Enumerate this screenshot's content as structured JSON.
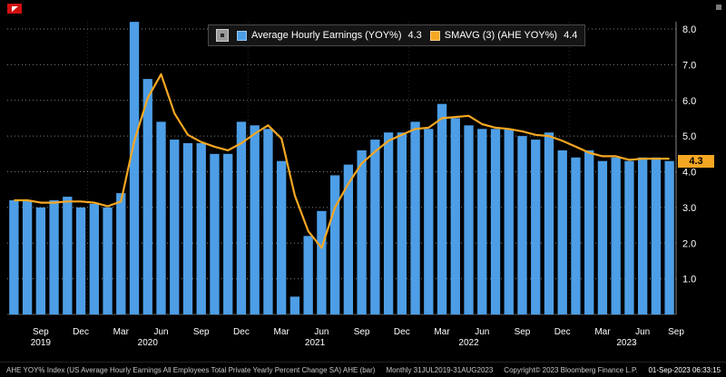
{
  "legend": {
    "series1_label": "Average Hourly Earnings (YOY%)",
    "series1_value": "4.3",
    "series2_label": "SMAVG (3) (AHE YOY%)",
    "series2_value": "4.4"
  },
  "axis": {
    "last_value": 4.3,
    "last_value_label": "4.3",
    "y_ticks": [
      {
        "v": 8,
        "label": "8.0"
      },
      {
        "v": 7,
        "label": "7.0"
      },
      {
        "v": 6,
        "label": "6.0"
      },
      {
        "v": 5,
        "label": "5.0"
      },
      {
        "v": 4,
        "label": "4.0"
      },
      {
        "v": 3,
        "label": "3.0"
      },
      {
        "v": 2,
        "label": "2.0"
      },
      {
        "v": 1,
        "label": "1.0"
      }
    ]
  },
  "footer": {
    "left": "AHE YOY% Index (US Average Hourly Earnings All Employees Total Private Yearly Percent Change SA) AHE (bar)",
    "mid": "Monthly 31JUL2019-31AUG2023",
    "copyright": "Copyright© 2023 Bloomberg Finance L.P.",
    "timestamp": "01-Sep-2023 06:33:15"
  },
  "colors": {
    "background": "#000000",
    "bar": "#4d9ee6",
    "line": "#f5a623",
    "grid": "rgba(255,255,255,0.5)",
    "axis_label_bg": "#f5a623"
  },
  "chart_data": {
    "type": "bar",
    "title": "Average Hourly Earnings YOY% with 3-month moving average",
    "xlabel": "",
    "ylabel": "YOY %",
    "ylim": [
      0,
      8.4
    ],
    "grid": "dotted horizontal",
    "legend_position": "top-center",
    "categories": [
      "Jul 2019",
      "Aug 2019",
      "Sep 2019",
      "Oct 2019",
      "Nov 2019",
      "Dec 2019",
      "Jan 2020",
      "Feb 2020",
      "Mar 2020",
      "Apr 2020",
      "May 2020",
      "Jun 2020",
      "Jul 2020",
      "Aug 2020",
      "Sep 2020",
      "Oct 2020",
      "Nov 2020",
      "Dec 2020",
      "Jan 2021",
      "Feb 2021",
      "Mar 2021",
      "Apr 2021",
      "May 2021",
      "Jun 2021",
      "Jul 2021",
      "Aug 2021",
      "Sep 2021",
      "Oct 2021",
      "Nov 2021",
      "Dec 2021",
      "Jan 2022",
      "Feb 2022",
      "Mar 2022",
      "Apr 2022",
      "May 2022",
      "Jun 2022",
      "Jul 2022",
      "Aug 2022",
      "Sep 2022",
      "Oct 2022",
      "Nov 2022",
      "Dec 2022",
      "Jan 2023",
      "Feb 2023",
      "Mar 2023",
      "Apr 2023",
      "May 2023",
      "Jun 2023",
      "Jul 2023",
      "Aug 2023"
    ],
    "series": [
      {
        "name": "Average Hourly Earnings (YOY%)",
        "type": "bar",
        "color": "#4d9ee6",
        "last_value": 4.3,
        "values": [
          3.2,
          3.2,
          3.0,
          3.2,
          3.3,
          3.0,
          3.1,
          3.0,
          3.4,
          8.2,
          6.6,
          5.4,
          4.9,
          4.8,
          4.8,
          4.5,
          4.5,
          5.4,
          5.3,
          5.2,
          4.3,
          0.5,
          2.2,
          2.9,
          3.9,
          4.2,
          4.6,
          4.9,
          5.1,
          5.1,
          5.4,
          5.2,
          5.9,
          5.5,
          5.3,
          5.2,
          5.2,
          5.2,
          5.0,
          4.9,
          5.1,
          4.6,
          4.4,
          4.6,
          4.3,
          4.4,
          4.3,
          4.4,
          4.4,
          4.3
        ]
      },
      {
        "name": "SMAVG (3) (AHE YOY%)",
        "type": "line",
        "color": "#f5a623",
        "derived": "3-period simple moving average of bar series",
        "last_value": 4.4
      }
    ],
    "y_grid": [
      1,
      2,
      3,
      4,
      5,
      6,
      7,
      8
    ],
    "x_ticks": [
      {
        "i": 2,
        "label": "Sep"
      },
      {
        "i": 5,
        "label": "Dec"
      },
      {
        "i": 8,
        "label": "Mar"
      },
      {
        "i": 11,
        "label": "Jun"
      },
      {
        "i": 14,
        "label": "Sep"
      },
      {
        "i": 17,
        "label": "Dec"
      },
      {
        "i": 20,
        "label": "Mar"
      },
      {
        "i": 23,
        "label": "Jun"
      },
      {
        "i": 26,
        "label": "Sep"
      },
      {
        "i": 29,
        "label": "Dec"
      },
      {
        "i": 32,
        "label": "Mar"
      },
      {
        "i": 35,
        "label": "Jun"
      },
      {
        "i": 38,
        "label": "Sep"
      },
      {
        "i": 41,
        "label": "Dec"
      },
      {
        "i": 44,
        "label": "Mar"
      },
      {
        "i": 47,
        "label": "Jun"
      },
      {
        "i": 50,
        "label": "Sep"
      }
    ],
    "year_labels": [
      {
        "i": 2,
        "label": "2019"
      },
      {
        "i": 10,
        "label": "2020"
      },
      {
        "i": 22.5,
        "label": "2021"
      },
      {
        "i": 34,
        "label": "2022"
      },
      {
        "i": 45.8,
        "label": "2023"
      }
    ],
    "year_boundaries": [
      6,
      18,
      30,
      42
    ]
  }
}
